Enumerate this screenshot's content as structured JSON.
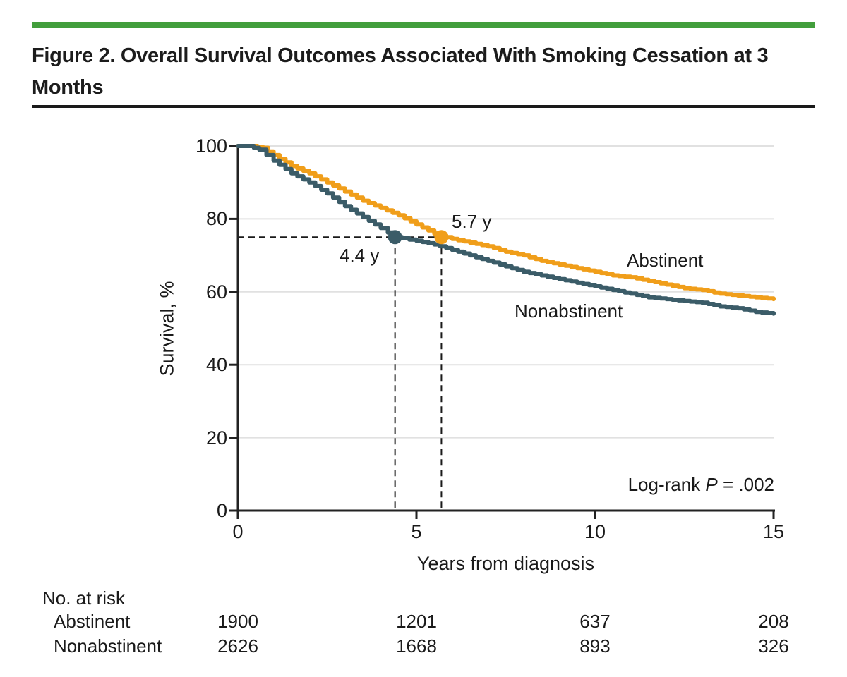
{
  "figure": {
    "title": "Figure 2. Overall Survival Outcomes Associated With Smoking Cessation at 3 Months"
  },
  "colors": {
    "accent_green": "#429E3C",
    "abstinent_orange": "#F09E1A",
    "nonabstinent_teal": "#3B5C68",
    "axis": "#222222",
    "gridline": "#E1E1E1",
    "dashed": "#1a1a1a",
    "text": "#1a1a1a"
  },
  "chart_data": {
    "type": "line",
    "subtype": "kaplan-meier-step",
    "title": "",
    "xlabel": "Years from diagnosis",
    "ylabel": "Survival, %",
    "xlim": [
      0,
      15
    ],
    "ylim": [
      0,
      100
    ],
    "xticks": [
      0,
      5,
      10,
      15
    ],
    "yticks": [
      0,
      20,
      40,
      60,
      80,
      100
    ],
    "grid": "horizontal",
    "legend_position": "curve-labels-inline",
    "series": [
      {
        "name": "Abstinent",
        "color": "#F09E1A",
        "points": [
          [
            0,
            100
          ],
          [
            0.4,
            100
          ],
          [
            0.7,
            99.5
          ],
          [
            1,
            97.5
          ],
          [
            1.5,
            94.5
          ],
          [
            2,
            92.5
          ],
          [
            2.5,
            90
          ],
          [
            3,
            87.5
          ],
          [
            3.5,
            85
          ],
          [
            4,
            83
          ],
          [
            4.5,
            81
          ],
          [
            5,
            78.5
          ],
          [
            5.5,
            76
          ],
          [
            6,
            74.5
          ],
          [
            6.5,
            73.5
          ],
          [
            7,
            72.5
          ],
          [
            7.5,
            71
          ],
          [
            8,
            70
          ],
          [
            8.5,
            68.5
          ],
          [
            9,
            67.5
          ],
          [
            9.5,
            66.5
          ],
          [
            10,
            65.5
          ],
          [
            10.5,
            64.5
          ],
          [
            11,
            64
          ],
          [
            11.5,
            63
          ],
          [
            12,
            62
          ],
          [
            12.5,
            61
          ],
          [
            13,
            60.5
          ],
          [
            13.5,
            59.5
          ],
          [
            14,
            59
          ],
          [
            14.5,
            58.5
          ],
          [
            15,
            58
          ]
        ]
      },
      {
        "name": "Nonabstinent",
        "color": "#3B5C68",
        "points": [
          [
            0,
            100
          ],
          [
            0.3,
            100
          ],
          [
            0.6,
            99
          ],
          [
            1,
            96
          ],
          [
            1.5,
            92.5
          ],
          [
            2,
            90
          ],
          [
            2.5,
            87
          ],
          [
            3,
            83.5
          ],
          [
            3.5,
            80.5
          ],
          [
            4,
            77.5
          ],
          [
            4.4,
            75
          ],
          [
            5,
            74
          ],
          [
            5.5,
            73
          ],
          [
            6,
            71.5
          ],
          [
            6.5,
            70
          ],
          [
            7,
            68.5
          ],
          [
            7.5,
            67
          ],
          [
            8,
            65.5
          ],
          [
            8.5,
            64.5
          ],
          [
            9,
            63.5
          ],
          [
            9.5,
            62.5
          ],
          [
            10,
            61.5
          ],
          [
            10.5,
            60.5
          ],
          [
            11,
            59.5
          ],
          [
            11.5,
            58.5
          ],
          [
            12,
            58
          ],
          [
            12.5,
            57.5
          ],
          [
            13,
            57
          ],
          [
            13.5,
            56
          ],
          [
            14,
            55.5
          ],
          [
            14.5,
            54.5
          ],
          [
            15,
            54
          ]
        ]
      }
    ],
    "reference_level_pct": 75,
    "median_markers": [
      {
        "series": "Nonabstinent",
        "label": "4.4 y",
        "x": 4.4,
        "y": 75,
        "color": "#3B5C68"
      },
      {
        "series": "Abstinent",
        "label": "5.7 y",
        "x": 5.7,
        "y": 75,
        "color": "#F09E1A"
      }
    ],
    "annotation": {
      "prefix": "Log-rank ",
      "stat": "P",
      "value": " = .002"
    },
    "at_risk": {
      "header": "No. at risk",
      "times": [
        0,
        5,
        10,
        15
      ],
      "rows": [
        {
          "name": "Abstinent",
          "values": [
            1900,
            1201,
            637,
            208
          ]
        },
        {
          "name": "Nonabstinent",
          "values": [
            2626,
            1668,
            893,
            326
          ]
        }
      ]
    }
  }
}
